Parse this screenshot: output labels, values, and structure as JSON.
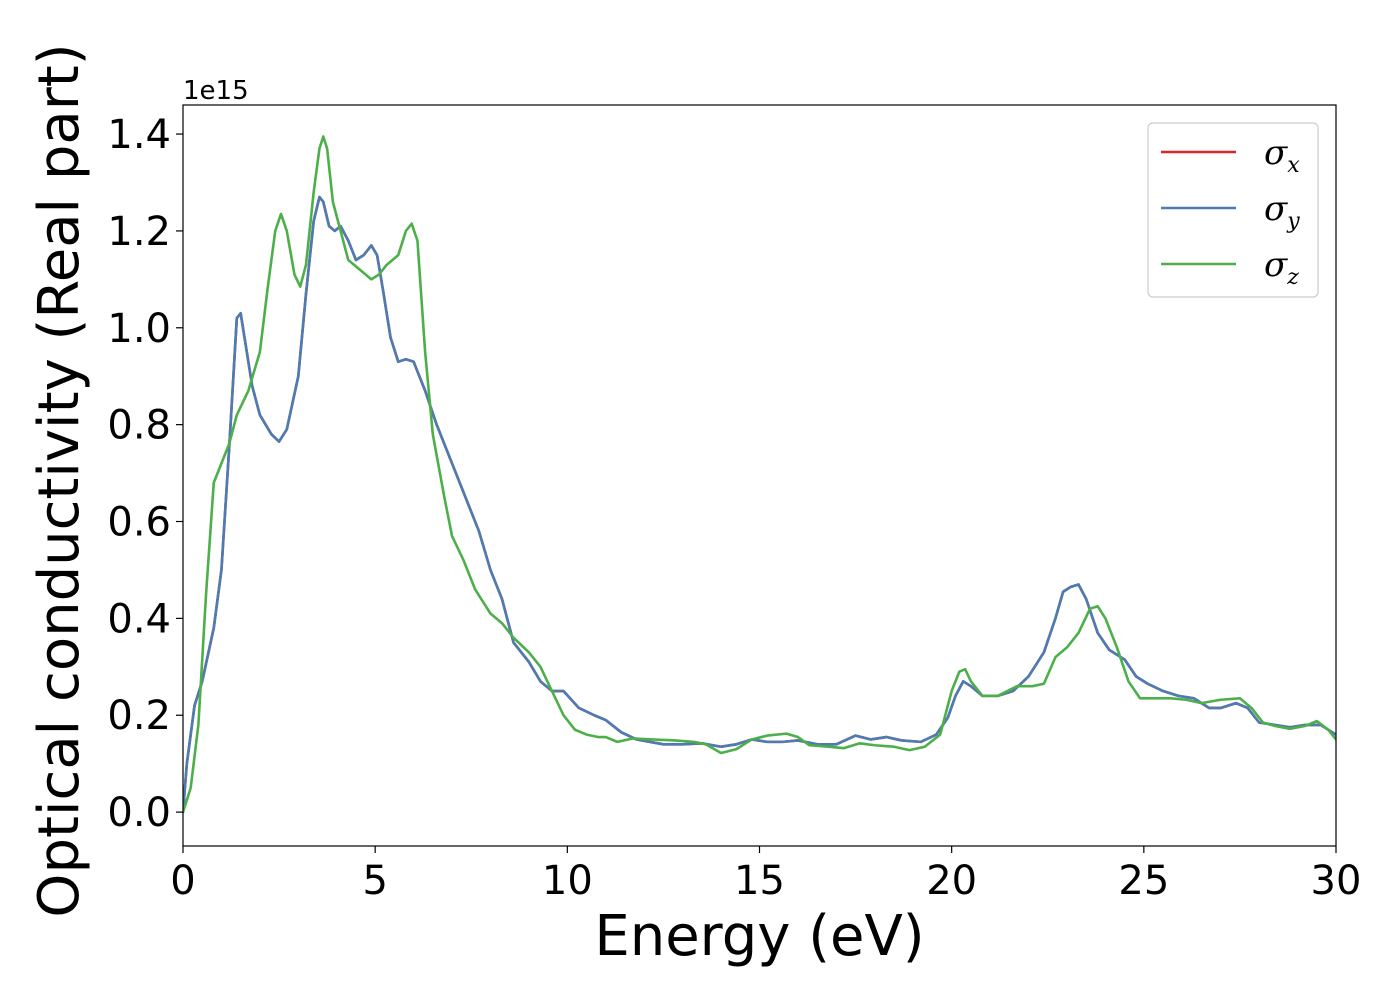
{
  "chart_data": {
    "type": "line",
    "xlabel": "Energy (eV)",
    "ylabel": "Optical conductivity (Real part)",
    "y_offset_label": "1e15",
    "xlim": [
      0,
      30
    ],
    "ylim": [
      -0.07,
      1.46
    ],
    "x_ticks": [
      0,
      5,
      10,
      15,
      20,
      25,
      30
    ],
    "x_tick_labels": [
      "0",
      "5",
      "10",
      "15",
      "20",
      "25",
      "30"
    ],
    "y_ticks": [
      0.0,
      0.2,
      0.4,
      0.6,
      0.8,
      1.0,
      1.2,
      1.4
    ],
    "y_tick_labels": [
      "0.0",
      "0.2",
      "0.4",
      "0.6",
      "0.8",
      "1.0",
      "1.2",
      "1.4"
    ],
    "grid": false,
    "legend_position": "top-right",
    "series": [
      {
        "name": "x",
        "color": "#d62728",
        "points": [
          [
            0,
            0
          ],
          [
            0.1,
            0.1
          ],
          [
            0.3,
            0.22
          ],
          [
            0.5,
            0.27
          ],
          [
            0.8,
            0.38
          ],
          [
            1.0,
            0.5
          ],
          [
            1.2,
            0.75
          ],
          [
            1.4,
            1.02
          ],
          [
            1.5,
            1.03
          ],
          [
            1.6,
            0.98
          ],
          [
            1.8,
            0.88
          ],
          [
            2.0,
            0.82
          ],
          [
            2.3,
            0.78
          ],
          [
            2.5,
            0.765
          ],
          [
            2.7,
            0.79
          ],
          [
            3.0,
            0.9
          ],
          [
            3.2,
            1.07
          ],
          [
            3.4,
            1.22
          ],
          [
            3.55,
            1.27
          ],
          [
            3.65,
            1.26
          ],
          [
            3.8,
            1.21
          ],
          [
            3.95,
            1.2
          ],
          [
            4.1,
            1.21
          ],
          [
            4.3,
            1.18
          ],
          [
            4.5,
            1.14
          ],
          [
            4.7,
            1.15
          ],
          [
            4.9,
            1.17
          ],
          [
            5.05,
            1.15
          ],
          [
            5.2,
            1.08
          ],
          [
            5.4,
            0.98
          ],
          [
            5.6,
            0.93
          ],
          [
            5.8,
            0.935
          ],
          [
            6.0,
            0.93
          ],
          [
            6.3,
            0.87
          ],
          [
            6.6,
            0.8
          ],
          [
            7.0,
            0.72
          ],
          [
            7.4,
            0.64
          ],
          [
            7.7,
            0.58
          ],
          [
            8.0,
            0.5
          ],
          [
            8.3,
            0.44
          ],
          [
            8.6,
            0.35
          ],
          [
            9.0,
            0.31
          ],
          [
            9.3,
            0.27
          ],
          [
            9.6,
            0.25
          ],
          [
            9.9,
            0.25
          ],
          [
            10.3,
            0.215
          ],
          [
            10.7,
            0.2
          ],
          [
            11.0,
            0.19
          ],
          [
            11.4,
            0.165
          ],
          [
            11.8,
            0.15
          ],
          [
            12.5,
            0.14
          ],
          [
            13.0,
            0.14
          ],
          [
            13.5,
            0.142
          ],
          [
            14.0,
            0.135
          ],
          [
            14.4,
            0.14
          ],
          [
            14.8,
            0.15
          ],
          [
            15.2,
            0.145
          ],
          [
            15.6,
            0.145
          ],
          [
            16.0,
            0.148
          ],
          [
            16.5,
            0.14
          ],
          [
            17.0,
            0.14
          ],
          [
            17.5,
            0.158
          ],
          [
            17.9,
            0.15
          ],
          [
            18.3,
            0.155
          ],
          [
            18.7,
            0.148
          ],
          [
            19.2,
            0.145
          ],
          [
            19.6,
            0.16
          ],
          [
            19.9,
            0.195
          ],
          [
            20.1,
            0.24
          ],
          [
            20.3,
            0.27
          ],
          [
            20.5,
            0.26
          ],
          [
            20.8,
            0.24
          ],
          [
            21.2,
            0.24
          ],
          [
            21.6,
            0.25
          ],
          [
            22.0,
            0.28
          ],
          [
            22.4,
            0.33
          ],
          [
            22.7,
            0.4
          ],
          [
            22.9,
            0.455
          ],
          [
            23.1,
            0.465
          ],
          [
            23.3,
            0.47
          ],
          [
            23.5,
            0.44
          ],
          [
            23.8,
            0.37
          ],
          [
            24.1,
            0.335
          ],
          [
            24.5,
            0.315
          ],
          [
            24.8,
            0.28
          ],
          [
            25.1,
            0.265
          ],
          [
            25.5,
            0.25
          ],
          [
            25.9,
            0.24
          ],
          [
            26.3,
            0.235
          ],
          [
            26.7,
            0.215
          ],
          [
            27.0,
            0.215
          ],
          [
            27.4,
            0.225
          ],
          [
            27.7,
            0.215
          ],
          [
            28.0,
            0.185
          ],
          [
            28.4,
            0.18
          ],
          [
            28.8,
            0.175
          ],
          [
            29.2,
            0.18
          ],
          [
            29.6,
            0.18
          ],
          [
            30.0,
            0.16
          ]
        ]
      },
      {
        "name": "y",
        "color": "#4b7cb3",
        "points": [
          [
            0,
            0
          ],
          [
            0.1,
            0.1
          ],
          [
            0.3,
            0.22
          ],
          [
            0.5,
            0.27
          ],
          [
            0.8,
            0.38
          ],
          [
            1.0,
            0.5
          ],
          [
            1.2,
            0.75
          ],
          [
            1.4,
            1.02
          ],
          [
            1.5,
            1.03
          ],
          [
            1.6,
            0.98
          ],
          [
            1.8,
            0.88
          ],
          [
            2.0,
            0.82
          ],
          [
            2.3,
            0.78
          ],
          [
            2.5,
            0.765
          ],
          [
            2.7,
            0.79
          ],
          [
            3.0,
            0.9
          ],
          [
            3.2,
            1.07
          ],
          [
            3.4,
            1.22
          ],
          [
            3.55,
            1.27
          ],
          [
            3.65,
            1.26
          ],
          [
            3.8,
            1.21
          ],
          [
            3.95,
            1.2
          ],
          [
            4.1,
            1.21
          ],
          [
            4.3,
            1.18
          ],
          [
            4.5,
            1.14
          ],
          [
            4.7,
            1.15
          ],
          [
            4.9,
            1.17
          ],
          [
            5.05,
            1.15
          ],
          [
            5.2,
            1.08
          ],
          [
            5.4,
            0.98
          ],
          [
            5.6,
            0.93
          ],
          [
            5.8,
            0.935
          ],
          [
            6.0,
            0.93
          ],
          [
            6.3,
            0.87
          ],
          [
            6.6,
            0.8
          ],
          [
            7.0,
            0.72
          ],
          [
            7.4,
            0.64
          ],
          [
            7.7,
            0.58
          ],
          [
            8.0,
            0.5
          ],
          [
            8.3,
            0.44
          ],
          [
            8.6,
            0.35
          ],
          [
            9.0,
            0.31
          ],
          [
            9.3,
            0.27
          ],
          [
            9.6,
            0.25
          ],
          [
            9.9,
            0.25
          ],
          [
            10.3,
            0.215
          ],
          [
            10.7,
            0.2
          ],
          [
            11.0,
            0.19
          ],
          [
            11.4,
            0.165
          ],
          [
            11.8,
            0.15
          ],
          [
            12.5,
            0.14
          ],
          [
            13.0,
            0.14
          ],
          [
            13.5,
            0.142
          ],
          [
            14.0,
            0.135
          ],
          [
            14.4,
            0.14
          ],
          [
            14.8,
            0.15
          ],
          [
            15.2,
            0.145
          ],
          [
            15.6,
            0.145
          ],
          [
            16.0,
            0.148
          ],
          [
            16.5,
            0.14
          ],
          [
            17.0,
            0.14
          ],
          [
            17.5,
            0.158
          ],
          [
            17.9,
            0.15
          ],
          [
            18.3,
            0.155
          ],
          [
            18.7,
            0.148
          ],
          [
            19.2,
            0.145
          ],
          [
            19.6,
            0.16
          ],
          [
            19.9,
            0.195
          ],
          [
            20.1,
            0.24
          ],
          [
            20.3,
            0.27
          ],
          [
            20.5,
            0.26
          ],
          [
            20.8,
            0.24
          ],
          [
            21.2,
            0.24
          ],
          [
            21.6,
            0.25
          ],
          [
            22.0,
            0.28
          ],
          [
            22.4,
            0.33
          ],
          [
            22.7,
            0.4
          ],
          [
            22.9,
            0.455
          ],
          [
            23.1,
            0.465
          ],
          [
            23.3,
            0.47
          ],
          [
            23.5,
            0.44
          ],
          [
            23.8,
            0.37
          ],
          [
            24.1,
            0.335
          ],
          [
            24.5,
            0.315
          ],
          [
            24.8,
            0.28
          ],
          [
            25.1,
            0.265
          ],
          [
            25.5,
            0.25
          ],
          [
            25.9,
            0.24
          ],
          [
            26.3,
            0.235
          ],
          [
            26.7,
            0.215
          ],
          [
            27.0,
            0.215
          ],
          [
            27.4,
            0.225
          ],
          [
            27.7,
            0.215
          ],
          [
            28.0,
            0.185
          ],
          [
            28.4,
            0.18
          ],
          [
            28.8,
            0.175
          ],
          [
            29.2,
            0.18
          ],
          [
            29.6,
            0.18
          ],
          [
            30.0,
            0.16
          ]
        ]
      },
      {
        "name": "z",
        "color": "#4daf4a",
        "points": [
          [
            0,
            0
          ],
          [
            0.2,
            0.05
          ],
          [
            0.4,
            0.18
          ],
          [
            0.6,
            0.45
          ],
          [
            0.8,
            0.68
          ],
          [
            1.0,
            0.72
          ],
          [
            1.2,
            0.76
          ],
          [
            1.4,
            0.82
          ],
          [
            1.7,
            0.87
          ],
          [
            2.0,
            0.95
          ],
          [
            2.2,
            1.08
          ],
          [
            2.4,
            1.2
          ],
          [
            2.55,
            1.235
          ],
          [
            2.7,
            1.2
          ],
          [
            2.9,
            1.11
          ],
          [
            3.05,
            1.085
          ],
          [
            3.2,
            1.13
          ],
          [
            3.4,
            1.28
          ],
          [
            3.55,
            1.37
          ],
          [
            3.65,
            1.395
          ],
          [
            3.75,
            1.37
          ],
          [
            3.9,
            1.26
          ],
          [
            4.1,
            1.2
          ],
          [
            4.3,
            1.14
          ],
          [
            4.6,
            1.12
          ],
          [
            4.9,
            1.1
          ],
          [
            5.1,
            1.11
          ],
          [
            5.3,
            1.13
          ],
          [
            5.6,
            1.15
          ],
          [
            5.8,
            1.2
          ],
          [
            5.95,
            1.215
          ],
          [
            6.1,
            1.18
          ],
          [
            6.3,
            0.95
          ],
          [
            6.5,
            0.78
          ],
          [
            6.8,
            0.65
          ],
          [
            7.0,
            0.57
          ],
          [
            7.3,
            0.52
          ],
          [
            7.6,
            0.46
          ],
          [
            8.0,
            0.41
          ],
          [
            8.3,
            0.39
          ],
          [
            8.6,
            0.36
          ],
          [
            9.0,
            0.33
          ],
          [
            9.3,
            0.3
          ],
          [
            9.6,
            0.25
          ],
          [
            9.9,
            0.2
          ],
          [
            10.2,
            0.17
          ],
          [
            10.5,
            0.16
          ],
          [
            10.8,
            0.155
          ],
          [
            11.0,
            0.155
          ],
          [
            11.3,
            0.145
          ],
          [
            11.7,
            0.152
          ],
          [
            12.2,
            0.15
          ],
          [
            12.8,
            0.148
          ],
          [
            13.3,
            0.145
          ],
          [
            13.6,
            0.14
          ],
          [
            14.0,
            0.122
          ],
          [
            14.4,
            0.13
          ],
          [
            14.8,
            0.15
          ],
          [
            15.2,
            0.158
          ],
          [
            15.7,
            0.162
          ],
          [
            16.0,
            0.155
          ],
          [
            16.3,
            0.138
          ],
          [
            16.8,
            0.135
          ],
          [
            17.2,
            0.132
          ],
          [
            17.6,
            0.142
          ],
          [
            18.0,
            0.138
          ],
          [
            18.5,
            0.135
          ],
          [
            18.9,
            0.128
          ],
          [
            19.3,
            0.135
          ],
          [
            19.7,
            0.16
          ],
          [
            20.0,
            0.25
          ],
          [
            20.2,
            0.29
          ],
          [
            20.35,
            0.295
          ],
          [
            20.5,
            0.27
          ],
          [
            20.8,
            0.24
          ],
          [
            21.2,
            0.24
          ],
          [
            21.7,
            0.26
          ],
          [
            22.1,
            0.26
          ],
          [
            22.4,
            0.265
          ],
          [
            22.7,
            0.32
          ],
          [
            23.0,
            0.34
          ],
          [
            23.3,
            0.37
          ],
          [
            23.6,
            0.42
          ],
          [
            23.8,
            0.425
          ],
          [
            24.0,
            0.4
          ],
          [
            24.3,
            0.34
          ],
          [
            24.6,
            0.27
          ],
          [
            24.9,
            0.235
          ],
          [
            25.3,
            0.235
          ],
          [
            25.7,
            0.235
          ],
          [
            26.1,
            0.232
          ],
          [
            26.5,
            0.225
          ],
          [
            27.0,
            0.232
          ],
          [
            27.5,
            0.235
          ],
          [
            27.8,
            0.215
          ],
          [
            28.1,
            0.185
          ],
          [
            28.4,
            0.178
          ],
          [
            28.8,
            0.172
          ],
          [
            29.2,
            0.178
          ],
          [
            29.5,
            0.188
          ],
          [
            29.8,
            0.17
          ],
          [
            30.0,
            0.15
          ]
        ]
      }
    ]
  }
}
